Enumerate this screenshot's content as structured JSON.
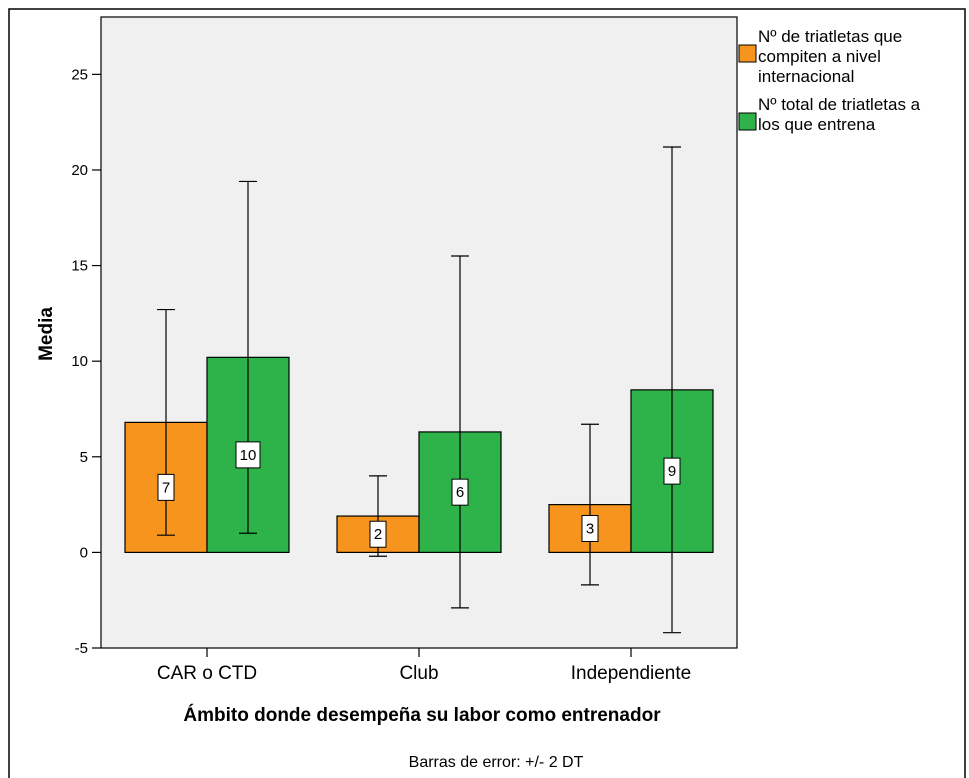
{
  "chart_data": {
    "type": "bar",
    "title": "",
    "xlabel": "Ámbito donde desempeña su labor como entrenador",
    "ylabel": "Media",
    "footnote": "Barras de error: +/- 2 DT",
    "ylim": [
      -5,
      28
    ],
    "yticks": [
      -5,
      0,
      5,
      10,
      15,
      20,
      25
    ],
    "grid": false,
    "legend_position": "right",
    "categories": [
      "CAR o CTD",
      "Club",
      "Independiente"
    ],
    "series": [
      {
        "name": "Nº de triatletas que compiten a nivel internacional",
        "color": "#f7941d",
        "values": [
          6.8,
          1.9,
          2.5
        ],
        "error_low": [
          0.9,
          -0.2,
          -1.7
        ],
        "error_high": [
          12.7,
          4.0,
          6.7
        ],
        "data_labels": [
          "7",
          "2",
          "3"
        ]
      },
      {
        "name": "Nº total de triatletas a los que entrena",
        "color": "#2db34a",
        "values": [
          10.2,
          6.3,
          8.5
        ],
        "error_low": [
          1.0,
          -2.9,
          -4.2
        ],
        "error_high": [
          19.4,
          15.5,
          21.2
        ],
        "data_labels": [
          "10",
          "6",
          "9"
        ]
      }
    ]
  }
}
